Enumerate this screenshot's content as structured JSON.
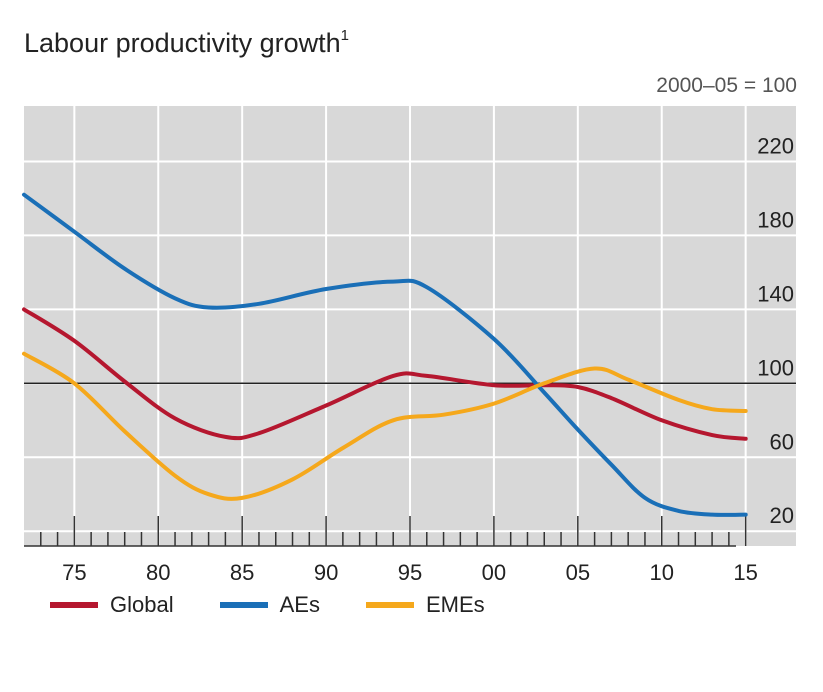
{
  "chart_data": {
    "type": "line",
    "title": "Labour productivity growth",
    "title_footnote": "1",
    "unit_label": "2000–05 = 100",
    "x_tick_labels": [
      "75",
      "80",
      "85",
      "90",
      "95",
      "00",
      "05",
      "10",
      "15"
    ],
    "x_tick_years": [
      1975,
      1980,
      1985,
      1990,
      1995,
      2000,
      2005,
      2010,
      2015
    ],
    "xlim": [
      1972,
      2018
    ],
    "y_tick_labels": [
      "20",
      "60",
      "100",
      "140",
      "180",
      "220"
    ],
    "y_ticks": [
      20,
      60,
      100,
      140,
      180,
      220
    ],
    "ylim": [
      12,
      250
    ],
    "reference_line": 100,
    "grid": true,
    "legend_position": "bottom-left",
    "series": [
      {
        "name": "Global",
        "color": "#b5172f",
        "x": [
          1972,
          1975,
          1978,
          1981,
          1984,
          1986,
          1990,
          1994,
          1996,
          2000,
          2003,
          2005,
          2007,
          2010,
          2013,
          2015
        ],
        "values": [
          140,
          123,
          101,
          81,
          71,
          73,
          88,
          104,
          104,
          99,
          99,
          98,
          92,
          80,
          72,
          70
        ]
      },
      {
        "name": "AEs",
        "color": "#1a6fb7",
        "x": [
          1972,
          1975,
          1978,
          1981,
          1983,
          1986,
          1990,
          1994,
          1996,
          2000,
          2003,
          2005,
          2007,
          2009,
          2011,
          2013,
          2015
        ],
        "values": [
          202,
          182,
          162,
          146,
          141,
          143,
          151,
          155,
          152,
          124,
          95,
          75,
          56,
          38,
          31,
          29,
          29
        ]
      },
      {
        "name": "EMEs",
        "color": "#f5a81c",
        "x": [
          1972,
          1975,
          1978,
          1981,
          1983,
          1985,
          1988,
          1991,
          1994,
          1997,
          2000,
          2003,
          2006,
          2008,
          2011,
          2013,
          2015
        ],
        "values": [
          116,
          100,
          74,
          50,
          40,
          38,
          48,
          65,
          80,
          83,
          89,
          100,
          108,
          102,
          91,
          86,
          85
        ]
      }
    ]
  }
}
